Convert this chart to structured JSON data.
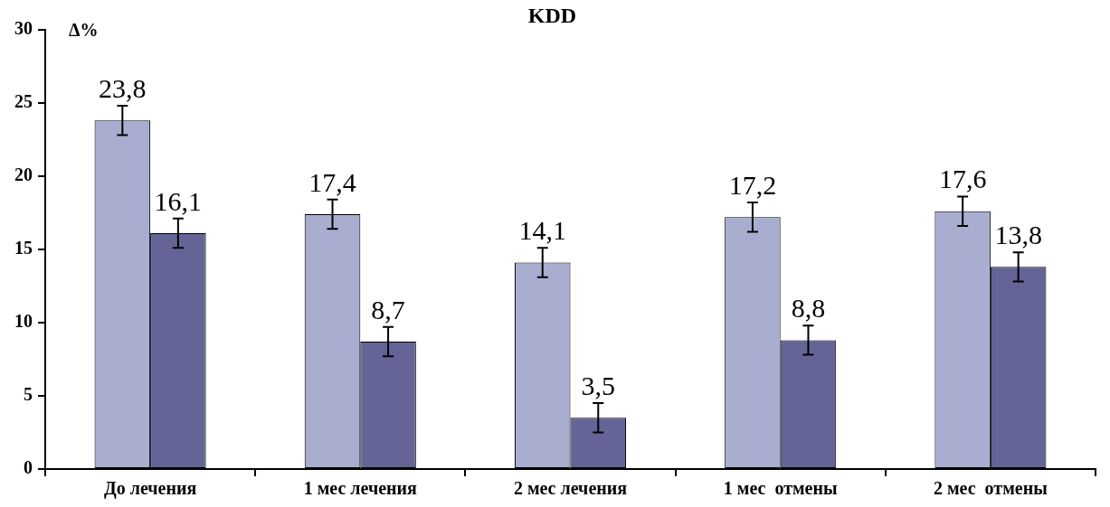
{
  "chart_data": {
    "type": "bar",
    "title": "KDD",
    "ylabel": "Δ%",
    "categories": [
      "До лечения",
      "1 мес лечения",
      "2 мес лечения",
      "1 мес  отмены",
      "2 мес  отмены"
    ],
    "series": [
      {
        "color": "#a9aed0",
        "values": [
          23.8,
          17.4,
          14.1,
          17.2,
          17.6
        ],
        "errors": [
          1,
          1,
          1,
          1,
          1
        ],
        "value_labels": [
          "23,8",
          "17,4",
          "14,1",
          "17,2",
          "17,6"
        ]
      },
      {
        "color": "#656496",
        "values": [
          16.1,
          8.7,
          3.5,
          8.8,
          13.8
        ],
        "errors": [
          1,
          1,
          1,
          1,
          1
        ],
        "value_labels": [
          "16,1",
          "8,7",
          "3,5",
          "8,8",
          "13,8"
        ]
      }
    ],
    "ylim": [
      0,
      30
    ],
    "yticks": [
      0,
      5,
      10,
      15,
      20,
      25,
      30
    ],
    "grid": false,
    "legend": false
  }
}
